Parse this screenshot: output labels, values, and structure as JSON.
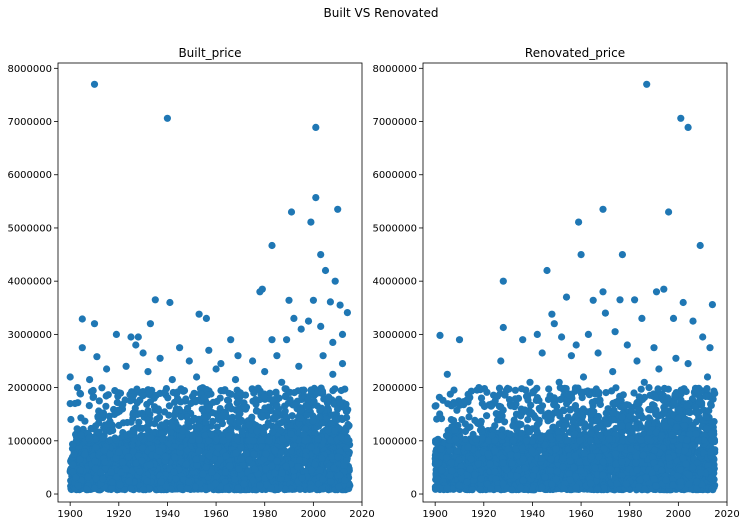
{
  "figure": {
    "suptitle": "Built VS Renovated"
  },
  "chart_data": [
    {
      "type": "scatter",
      "title": "Built_price",
      "xlabel": "",
      "ylabel": "",
      "xlim": [
        1895,
        2020
      ],
      "ylim": [
        -150000,
        8100000
      ],
      "xticks": [
        1900,
        1920,
        1940,
        1960,
        1980,
        2000,
        2020
      ],
      "yticks": [
        0,
        1000000,
        2000000,
        3000000,
        4000000,
        5000000,
        6000000,
        7000000,
        8000000
      ],
      "color": "#1f77b4",
      "dense_band": {
        "x": [
          1900,
          2015
        ],
        "y": [
          80000,
          1000000
        ]
      },
      "points": [
        [
          1910,
          7700000
        ],
        [
          1940,
          7060000
        ],
        [
          2001,
          6890000
        ],
        [
          2001,
          5570000
        ],
        [
          1991,
          5300000
        ],
        [
          2010,
          5350000
        ],
        [
          1999,
          5110000
        ],
        [
          2003,
          4500000
        ],
        [
          1983,
          4670000
        ],
        [
          2005,
          4200000
        ],
        [
          2009,
          4000000
        ],
        [
          1979,
          3850000
        ],
        [
          1978,
          3800000
        ],
        [
          1935,
          3650000
        ],
        [
          1941,
          3600000
        ],
        [
          2000,
          3640000
        ],
        [
          1990,
          3640000
        ],
        [
          2007,
          3610000
        ],
        [
          2011,
          3550000
        ],
        [
          1953,
          3380000
        ],
        [
          2014,
          3410000
        ],
        [
          1956,
          3300000
        ],
        [
          1905,
          3290000
        ],
        [
          1910,
          3200000
        ],
        [
          1992,
          3300000
        ],
        [
          1998,
          3250000
        ],
        [
          1933,
          3200000
        ],
        [
          2003,
          3150000
        ],
        [
          1995,
          3100000
        ],
        [
          1919,
          3000000
        ],
        [
          2012,
          3000000
        ],
        [
          1925,
          2950000
        ],
        [
          1928,
          2950000
        ],
        [
          1966,
          2900000
        ],
        [
          1983,
          2900000
        ],
        [
          1989,
          2900000
        ],
        [
          1927,
          2800000
        ],
        [
          2008,
          2850000
        ],
        [
          1905,
          2750000
        ],
        [
          1945,
          2750000
        ],
        [
          1957,
          2700000
        ],
        [
          1930,
          2650000
        ],
        [
          1969,
          2600000
        ],
        [
          1985,
          2600000
        ],
        [
          1911,
          2580000
        ],
        [
          1937,
          2550000
        ],
        [
          1949,
          2500000
        ],
        [
          1900,
          2200000
        ],
        [
          1903,
          2000000
        ],
        [
          1923,
          2400000
        ],
        [
          1962,
          2450000
        ],
        [
          1975,
          2500000
        ],
        [
          2012,
          2450000
        ],
        [
          1915,
          2350000
        ],
        [
          1932,
          2300000
        ],
        [
          1960,
          2350000
        ],
        [
          1980,
          2300000
        ],
        [
          1994,
          2400000
        ],
        [
          1908,
          2150000
        ],
        [
          1942,
          2150000
        ],
        [
          1952,
          2200000
        ],
        [
          1968,
          2150000
        ],
        [
          1900,
          1700000
        ],
        [
          1970,
          1900000
        ],
        [
          1955,
          1800000
        ],
        [
          1930,
          1850000
        ],
        [
          1912,
          1750000
        ],
        [
          1987,
          2100000
        ],
        [
          2004,
          2600000
        ],
        [
          2008,
          2250000
        ]
      ]
    },
    {
      "type": "scatter",
      "title": "Renovated_price",
      "xlabel": "",
      "ylabel": "",
      "xlim": [
        1895,
        2020
      ],
      "ylim": [
        -150000,
        8100000
      ],
      "xticks": [
        1900,
        1920,
        1940,
        1960,
        1980,
        2000,
        2020
      ],
      "yticks": [
        0,
        1000000,
        2000000,
        3000000,
        4000000,
        5000000,
        6000000,
        7000000,
        8000000
      ],
      "color": "#1f77b4",
      "dense_band": {
        "x": [
          1900,
          2015
        ],
        "y": [
          80000,
          1000000
        ]
      },
      "points": [
        [
          1987,
          7700000
        ],
        [
          2001,
          7060000
        ],
        [
          2004,
          6890000
        ],
        [
          1969,
          5350000
        ],
        [
          1996,
          5300000
        ],
        [
          1959,
          5110000
        ],
        [
          1960,
          4500000
        ],
        [
          1977,
          4500000
        ],
        [
          2009,
          4670000
        ],
        [
          1946,
          4200000
        ],
        [
          1928,
          4000000
        ],
        [
          1994,
          3850000
        ],
        [
          1969,
          3800000
        ],
        [
          1991,
          3800000
        ],
        [
          1976,
          3650000
        ],
        [
          1982,
          3650000
        ],
        [
          2002,
          3600000
        ],
        [
          2014,
          3560000
        ],
        [
          1954,
          3700000
        ],
        [
          1965,
          3640000
        ],
        [
          1948,
          3380000
        ],
        [
          1970,
          3400000
        ],
        [
          1998,
          3300000
        ],
        [
          2006,
          3250000
        ],
        [
          1985,
          3300000
        ],
        [
          1949,
          3200000
        ],
        [
          1942,
          3000000
        ],
        [
          1928,
          3130000
        ],
        [
          1952,
          2950000
        ],
        [
          1963,
          3000000
        ],
        [
          1974,
          3050000
        ],
        [
          2010,
          2950000
        ],
        [
          1902,
          2980000
        ],
        [
          1910,
          2900000
        ],
        [
          1936,
          2900000
        ],
        [
          1958,
          2800000
        ],
        [
          1979,
          2800000
        ],
        [
          1990,
          2750000
        ],
        [
          2013,
          2750000
        ],
        [
          1944,
          2650000
        ],
        [
          1967,
          2650000
        ],
        [
          1956,
          2600000
        ],
        [
          1999,
          2550000
        ],
        [
          1927,
          2500000
        ],
        [
          1983,
          2500000
        ],
        [
          1905,
          2250000
        ],
        [
          1939,
          2100000
        ],
        [
          1961,
          2200000
        ],
        [
          1973,
          2300000
        ],
        [
          1992,
          2350000
        ],
        [
          1918,
          2000000
        ],
        [
          1933,
          1950000
        ],
        [
          1900,
          1650000
        ],
        [
          1914,
          1800000
        ],
        [
          1951,
          2100000
        ],
        [
          2004,
          2450000
        ],
        [
          2012,
          2200000
        ],
        [
          1986,
          2100000
        ],
        [
          1908,
          1700000
        ],
        [
          1923,
          1650000
        ]
      ]
    }
  ]
}
